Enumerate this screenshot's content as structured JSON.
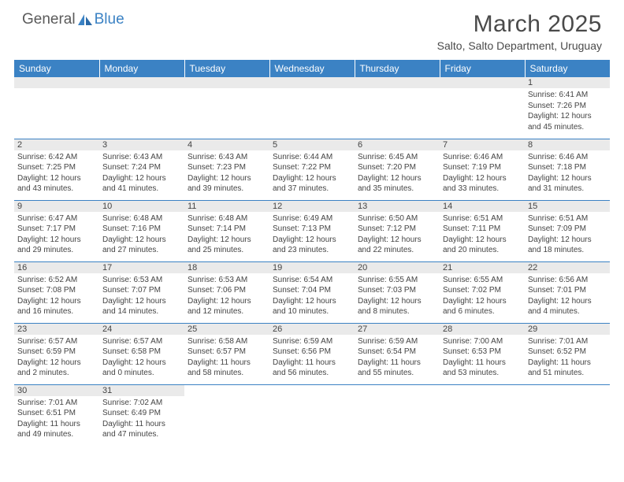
{
  "brand": {
    "text1": "General",
    "text2": "Blue"
  },
  "title": "March 2025",
  "location": "Salto, Salto Department, Uruguay",
  "colors": {
    "header_bg": "#3b82c4",
    "header_text": "#ffffff",
    "body_text": "#444444",
    "daynum_bg": "#eaeaea",
    "border": "#3b82c4"
  },
  "weekdays": [
    "Sunday",
    "Monday",
    "Tuesday",
    "Wednesday",
    "Thursday",
    "Friday",
    "Saturday"
  ],
  "weeks": [
    [
      {
        "empty": true
      },
      {
        "empty": true
      },
      {
        "empty": true
      },
      {
        "empty": true
      },
      {
        "empty": true
      },
      {
        "empty": true
      },
      {
        "num": "1",
        "sunrise": "Sunrise: 6:41 AM",
        "sunset": "Sunset: 7:26 PM",
        "daylight1": "Daylight: 12 hours",
        "daylight2": "and 45 minutes."
      }
    ],
    [
      {
        "num": "2",
        "sunrise": "Sunrise: 6:42 AM",
        "sunset": "Sunset: 7:25 PM",
        "daylight1": "Daylight: 12 hours",
        "daylight2": "and 43 minutes."
      },
      {
        "num": "3",
        "sunrise": "Sunrise: 6:43 AM",
        "sunset": "Sunset: 7:24 PM",
        "daylight1": "Daylight: 12 hours",
        "daylight2": "and 41 minutes."
      },
      {
        "num": "4",
        "sunrise": "Sunrise: 6:43 AM",
        "sunset": "Sunset: 7:23 PM",
        "daylight1": "Daylight: 12 hours",
        "daylight2": "and 39 minutes."
      },
      {
        "num": "5",
        "sunrise": "Sunrise: 6:44 AM",
        "sunset": "Sunset: 7:22 PM",
        "daylight1": "Daylight: 12 hours",
        "daylight2": "and 37 minutes."
      },
      {
        "num": "6",
        "sunrise": "Sunrise: 6:45 AM",
        "sunset": "Sunset: 7:20 PM",
        "daylight1": "Daylight: 12 hours",
        "daylight2": "and 35 minutes."
      },
      {
        "num": "7",
        "sunrise": "Sunrise: 6:46 AM",
        "sunset": "Sunset: 7:19 PM",
        "daylight1": "Daylight: 12 hours",
        "daylight2": "and 33 minutes."
      },
      {
        "num": "8",
        "sunrise": "Sunrise: 6:46 AM",
        "sunset": "Sunset: 7:18 PM",
        "daylight1": "Daylight: 12 hours",
        "daylight2": "and 31 minutes."
      }
    ],
    [
      {
        "num": "9",
        "sunrise": "Sunrise: 6:47 AM",
        "sunset": "Sunset: 7:17 PM",
        "daylight1": "Daylight: 12 hours",
        "daylight2": "and 29 minutes."
      },
      {
        "num": "10",
        "sunrise": "Sunrise: 6:48 AM",
        "sunset": "Sunset: 7:16 PM",
        "daylight1": "Daylight: 12 hours",
        "daylight2": "and 27 minutes."
      },
      {
        "num": "11",
        "sunrise": "Sunrise: 6:48 AM",
        "sunset": "Sunset: 7:14 PM",
        "daylight1": "Daylight: 12 hours",
        "daylight2": "and 25 minutes."
      },
      {
        "num": "12",
        "sunrise": "Sunrise: 6:49 AM",
        "sunset": "Sunset: 7:13 PM",
        "daylight1": "Daylight: 12 hours",
        "daylight2": "and 23 minutes."
      },
      {
        "num": "13",
        "sunrise": "Sunrise: 6:50 AM",
        "sunset": "Sunset: 7:12 PM",
        "daylight1": "Daylight: 12 hours",
        "daylight2": "and 22 minutes."
      },
      {
        "num": "14",
        "sunrise": "Sunrise: 6:51 AM",
        "sunset": "Sunset: 7:11 PM",
        "daylight1": "Daylight: 12 hours",
        "daylight2": "and 20 minutes."
      },
      {
        "num": "15",
        "sunrise": "Sunrise: 6:51 AM",
        "sunset": "Sunset: 7:09 PM",
        "daylight1": "Daylight: 12 hours",
        "daylight2": "and 18 minutes."
      }
    ],
    [
      {
        "num": "16",
        "sunrise": "Sunrise: 6:52 AM",
        "sunset": "Sunset: 7:08 PM",
        "daylight1": "Daylight: 12 hours",
        "daylight2": "and 16 minutes."
      },
      {
        "num": "17",
        "sunrise": "Sunrise: 6:53 AM",
        "sunset": "Sunset: 7:07 PM",
        "daylight1": "Daylight: 12 hours",
        "daylight2": "and 14 minutes."
      },
      {
        "num": "18",
        "sunrise": "Sunrise: 6:53 AM",
        "sunset": "Sunset: 7:06 PM",
        "daylight1": "Daylight: 12 hours",
        "daylight2": "and 12 minutes."
      },
      {
        "num": "19",
        "sunrise": "Sunrise: 6:54 AM",
        "sunset": "Sunset: 7:04 PM",
        "daylight1": "Daylight: 12 hours",
        "daylight2": "and 10 minutes."
      },
      {
        "num": "20",
        "sunrise": "Sunrise: 6:55 AM",
        "sunset": "Sunset: 7:03 PM",
        "daylight1": "Daylight: 12 hours",
        "daylight2": "and 8 minutes."
      },
      {
        "num": "21",
        "sunrise": "Sunrise: 6:55 AM",
        "sunset": "Sunset: 7:02 PM",
        "daylight1": "Daylight: 12 hours",
        "daylight2": "and 6 minutes."
      },
      {
        "num": "22",
        "sunrise": "Sunrise: 6:56 AM",
        "sunset": "Sunset: 7:01 PM",
        "daylight1": "Daylight: 12 hours",
        "daylight2": "and 4 minutes."
      }
    ],
    [
      {
        "num": "23",
        "sunrise": "Sunrise: 6:57 AM",
        "sunset": "Sunset: 6:59 PM",
        "daylight1": "Daylight: 12 hours",
        "daylight2": "and 2 minutes."
      },
      {
        "num": "24",
        "sunrise": "Sunrise: 6:57 AM",
        "sunset": "Sunset: 6:58 PM",
        "daylight1": "Daylight: 12 hours",
        "daylight2": "and 0 minutes."
      },
      {
        "num": "25",
        "sunrise": "Sunrise: 6:58 AM",
        "sunset": "Sunset: 6:57 PM",
        "daylight1": "Daylight: 11 hours",
        "daylight2": "and 58 minutes."
      },
      {
        "num": "26",
        "sunrise": "Sunrise: 6:59 AM",
        "sunset": "Sunset: 6:56 PM",
        "daylight1": "Daylight: 11 hours",
        "daylight2": "and 56 minutes."
      },
      {
        "num": "27",
        "sunrise": "Sunrise: 6:59 AM",
        "sunset": "Sunset: 6:54 PM",
        "daylight1": "Daylight: 11 hours",
        "daylight2": "and 55 minutes."
      },
      {
        "num": "28",
        "sunrise": "Sunrise: 7:00 AM",
        "sunset": "Sunset: 6:53 PM",
        "daylight1": "Daylight: 11 hours",
        "daylight2": "and 53 minutes."
      },
      {
        "num": "29",
        "sunrise": "Sunrise: 7:01 AM",
        "sunset": "Sunset: 6:52 PM",
        "daylight1": "Daylight: 11 hours",
        "daylight2": "and 51 minutes."
      }
    ],
    [
      {
        "num": "30",
        "sunrise": "Sunrise: 7:01 AM",
        "sunset": "Sunset: 6:51 PM",
        "daylight1": "Daylight: 11 hours",
        "daylight2": "and 49 minutes."
      },
      {
        "num": "31",
        "sunrise": "Sunrise: 7:02 AM",
        "sunset": "Sunset: 6:49 PM",
        "daylight1": "Daylight: 11 hours",
        "daylight2": "and 47 minutes."
      },
      {
        "empty": true,
        "noBg": true
      },
      {
        "empty": true,
        "noBg": true
      },
      {
        "empty": true,
        "noBg": true
      },
      {
        "empty": true,
        "noBg": true
      },
      {
        "empty": true,
        "noBg": true
      }
    ]
  ]
}
